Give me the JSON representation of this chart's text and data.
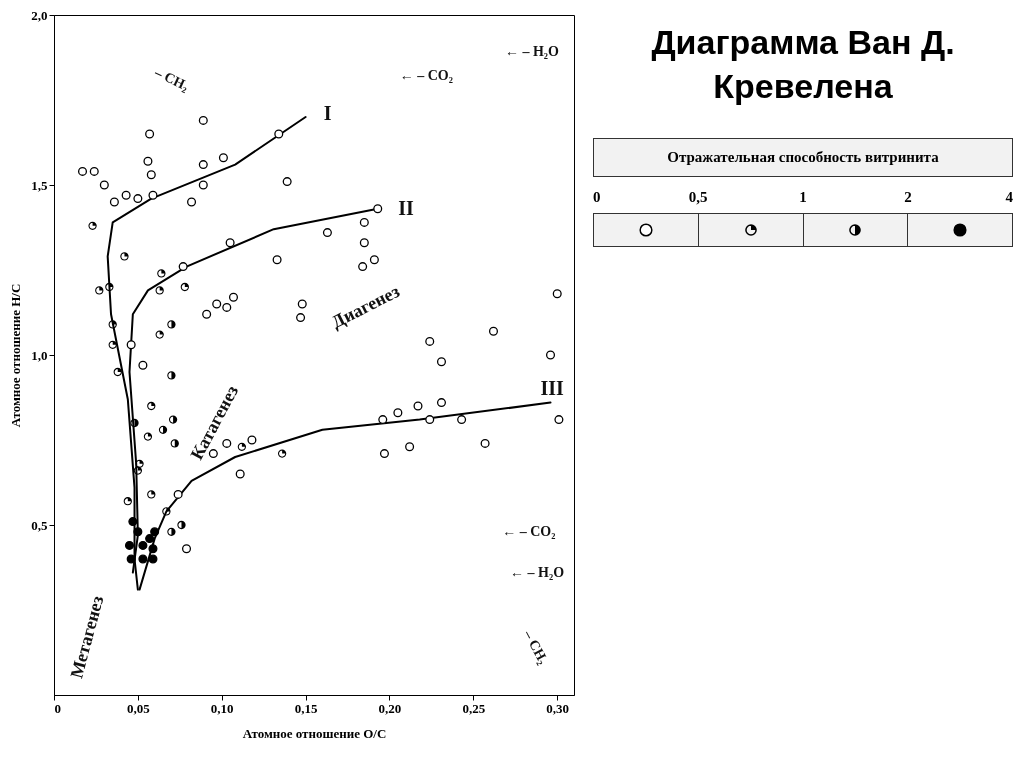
{
  "chart_data": {
    "type": "scatter",
    "title": "Диаграмма Ван Д. Кревелена",
    "xlabel": "Атомное отношение O/C",
    "ylabel": "Атомное отношение H/C",
    "legend_title": "Отражательная способность витринита",
    "grid": false,
    "xlim": [
      0,
      0.31
    ],
    "ylim": [
      0,
      2.0
    ],
    "xticks": [
      0,
      {
        "value": 0.05,
        "label": "0,05"
      },
      {
        "value": 0.1,
        "label": "0,10"
      },
      {
        "value": 0.15,
        "label": "0,15"
      },
      {
        "value": 0.2,
        "label": "0,20"
      },
      {
        "value": 0.25,
        "label": "0,25"
      },
      {
        "value": 0.3,
        "label": "0,30"
      }
    ],
    "yticks": [
      {
        "value": 0.5,
        "label": "0,5"
      },
      {
        "value": 1.0,
        "label": "1,0"
      },
      {
        "value": 1.5,
        "label": "1,5"
      },
      {
        "value": 2.0,
        "label": "2,0"
      }
    ],
    "series": [
      {
        "color": "#ffffff",
        "x": [
          0.089,
          0.057,
          0.134,
          0.017,
          0.024,
          0.056,
          0.089,
          0.101,
          0.058,
          0.089,
          0.03,
          0.139,
          0.036,
          0.043,
          0.05,
          0.059,
          0.082,
          0.193,
          0.163,
          0.185,
          0.105,
          0.185,
          0.133,
          0.184,
          0.191,
          0.077,
          0.107,
          0.091,
          0.148,
          0.147,
          0.3,
          0.262,
          0.224,
          0.231,
          0.296,
          0.046,
          0.053,
          0.095,
          0.103,
          0.118,
          0.111,
          0.217,
          0.231,
          0.196,
          0.205,
          0.224,
          0.243,
          0.301,
          0.257,
          0.212,
          0.197,
          0.074,
          0.079,
          0.097,
          0.103
        ],
        "values": [
          1.69,
          1.65,
          1.65,
          1.54,
          1.54,
          1.57,
          1.56,
          1.58,
          1.53,
          1.5,
          1.5,
          1.51,
          1.45,
          1.47,
          1.46,
          1.47,
          1.45,
          1.43,
          1.36,
          1.39,
          1.33,
          1.33,
          1.28,
          1.26,
          1.28,
          1.26,
          1.17,
          1.12,
          1.15,
          1.11,
          1.18,
          1.07,
          1.04,
          0.98,
          1.0,
          1.03,
          0.97,
          0.71,
          0.74,
          0.75,
          0.65,
          0.85,
          0.86,
          0.81,
          0.83,
          0.81,
          0.81,
          0.81,
          0.74,
          0.73,
          0.71,
          0.59,
          0.43,
          1.15,
          1.14
        ]
      },
      {
        "color": "#000000",
        "x": [
          0.023,
          0.042,
          0.064,
          0.063,
          0.027,
          0.033,
          0.078,
          0.035,
          0.035,
          0.038,
          0.063,
          0.058,
          0.056,
          0.112,
          0.136,
          0.051,
          0.05,
          0.044,
          0.058,
          0.067
        ],
        "values": [
          1.38,
          1.29,
          1.24,
          1.19,
          1.19,
          1.2,
          1.2,
          1.09,
          1.03,
          0.95,
          1.06,
          0.85,
          0.76,
          0.73,
          0.71,
          0.68,
          0.66,
          0.57,
          0.59,
          0.54
        ]
      },
      {
        "color": "#000000",
        "x": [
          0.07,
          0.07,
          0.071,
          0.048,
          0.065,
          0.072,
          0.076,
          0.07
        ],
        "values": [
          1.09,
          0.94,
          0.81,
          0.8,
          0.78,
          0.74,
          0.5,
          0.48
        ]
      },
      {
        "color": "#000000",
        "x": [
          0.047,
          0.05,
          0.06,
          0.057,
          0.045,
          0.053,
          0.059,
          0.046,
          0.053,
          0.059
        ],
        "values": [
          0.51,
          0.48,
          0.48,
          0.46,
          0.44,
          0.44,
          0.43,
          0.4,
          0.4,
          0.4
        ]
      },
      {
        "type": "line",
        "color": "#000000",
        "x": [
          0.15,
          0.108,
          0.058,
          0.035,
          0.032,
          0.034,
          0.044,
          0.048,
          0.048,
          0.05
        ],
        "values": [
          1.7,
          1.56,
          1.46,
          1.39,
          1.29,
          1.12,
          0.87,
          0.61,
          0.4,
          0.31
        ]
      },
      {
        "type": "line",
        "color": "#000000",
        "x": [
          0.193,
          0.131,
          0.079,
          0.056,
          0.047,
          0.045,
          0.049,
          0.05,
          0.047
        ],
        "values": [
          1.43,
          1.37,
          1.26,
          1.19,
          1.12,
          0.95,
          0.68,
          0.47,
          0.36
        ]
      },
      {
        "type": "line",
        "color": "#000000",
        "x": [
          0.296,
          0.218,
          0.16,
          0.108,
          0.082,
          0.067,
          0.06,
          0.051
        ],
        "values": [
          0.86,
          0.81,
          0.78,
          0.7,
          0.63,
          0.54,
          0.46,
          0.31
        ]
      }
    ],
    "annotations": [
      "0",
      "0,5",
      "1",
      "2",
      "4",
      "I",
      "II",
      "III",
      "Диагенез",
      "Катагенез",
      "Метагенез",
      "– CH₂",
      "← – CO₂",
      "← – H₂O",
      "← – CO₂",
      "← – H₂O",
      "– CH₂"
    ]
  }
}
